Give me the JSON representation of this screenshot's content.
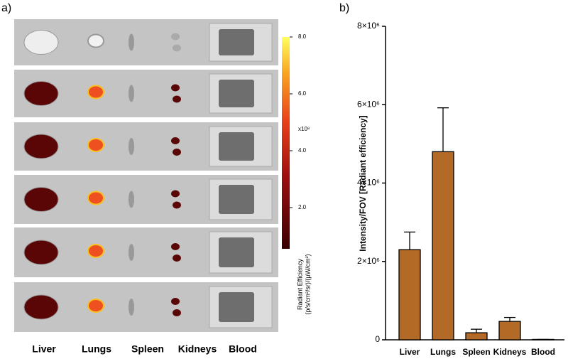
{
  "panel_a": {
    "panel_label": "a)",
    "organs": [
      "Liver",
      "Lungs",
      "Spleen",
      "Kidneys",
      "Blood"
    ],
    "colorbar": {
      "lim": [
        0.55,
        8.0
      ],
      "ticks": [
        {
          "value": 2,
          "label": "2.0"
        },
        {
          "value": 4,
          "label": "4.0"
        },
        {
          "value": 6,
          "label": "6.0"
        },
        {
          "value": 8,
          "label": "8.0"
        }
      ],
      "multiplier": "x10⁸",
      "label_lines": [
        "Radiant Efficiency",
        "(p/s/cm²/sr)/(µW/cm²)"
      ]
    }
  },
  "chart_data": {
    "type": "bar",
    "panel_label": "b)",
    "ylabel": "Intensity/FOV [Radiant efficiency]",
    "categories": [
      "Liver",
      "Lungs",
      "Spleen",
      "Kidneys",
      "Blood"
    ],
    "values": [
      2300000,
      4800000,
      180000,
      470000,
      10000
    ],
    "errors": [
      450000,
      1120000,
      90000,
      100000,
      0
    ],
    "color": "#b36a26",
    "ylim": [
      0,
      8000000
    ],
    "yticks": [
      0,
      {
        "value": 2000000,
        "label": "2×10⁶"
      },
      {
        "value": 4000000,
        "label": "4×10⁶"
      },
      {
        "value": 6000000,
        "label": "6×10⁶"
      },
      {
        "value": 8000000,
        "label": "8×10⁶"
      }
    ]
  }
}
